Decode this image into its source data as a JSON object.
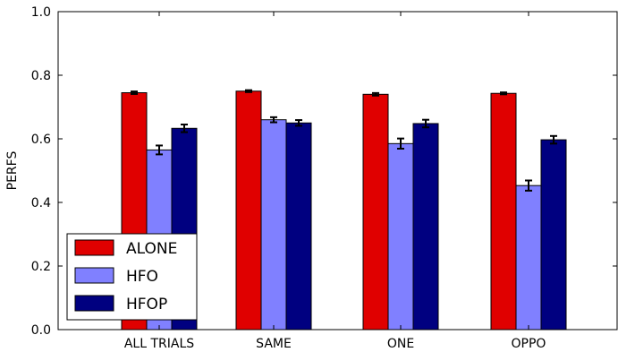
{
  "chart_data": {
    "type": "bar",
    "title": "",
    "xlabel": "",
    "ylabel": "PERFS",
    "ylim": [
      0,
      1.0
    ],
    "yticks": [
      "0.0",
      "0.2",
      "0.4",
      "0.6",
      "0.8",
      "1.0"
    ],
    "categories": [
      "ALL TRIALS",
      "SAME",
      "ONE",
      "OPPO"
    ],
    "series": [
      {
        "name": "ALONE",
        "color": "#e00000",
        "values": [
          0.745,
          0.75,
          0.74,
          0.743
        ],
        "errors": [
          0.004,
          0.003,
          0.004,
          0.003
        ]
      },
      {
        "name": "HFO",
        "color": "#8080ff",
        "values": [
          0.565,
          0.66,
          0.585,
          0.453
        ],
        "errors": [
          0.014,
          0.008,
          0.016,
          0.016
        ]
      },
      {
        "name": "HFOP",
        "color": "#000080",
        "values": [
          0.633,
          0.65,
          0.648,
          0.597
        ],
        "errors": [
          0.012,
          0.009,
          0.012,
          0.012
        ]
      }
    ],
    "legend": {
      "position": "bottom-left"
    },
    "grid": false
  }
}
